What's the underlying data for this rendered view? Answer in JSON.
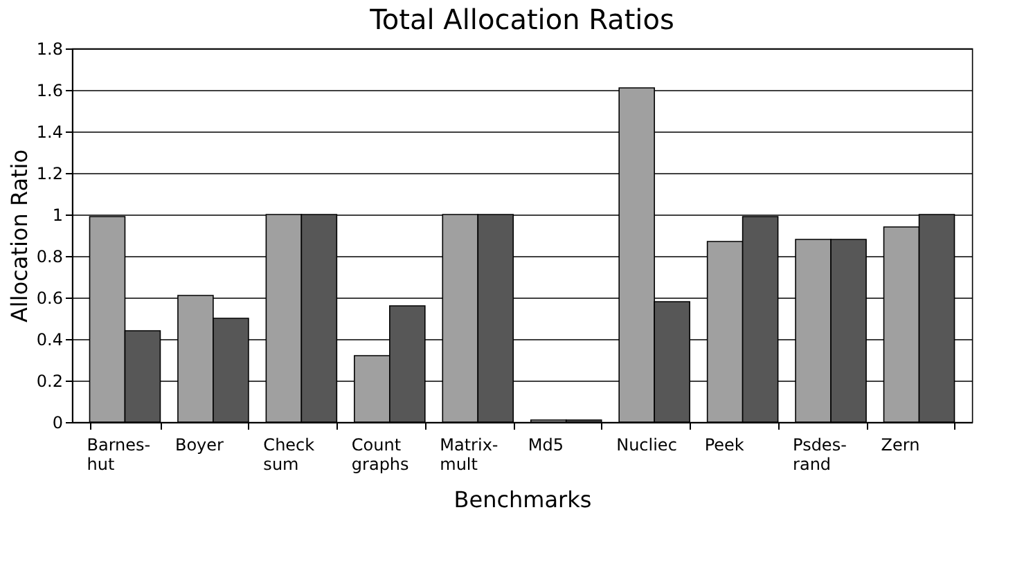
{
  "chart_data": {
    "type": "bar",
    "title": "Total Allocation Ratios",
    "xlabel": "Benchmarks",
    "ylabel": "Allocation Ratio",
    "categories": [
      "Barnes-\nhut",
      "Boyer",
      "Check\nsum",
      "Count\ngraphs",
      "Matrix-\nmult",
      "Md5",
      "Nucliec",
      "Peek",
      "Psdes-\nrand",
      "Zern"
    ],
    "series": [
      {
        "color": "#a0a0a0",
        "values": [
          0.99,
          0.61,
          1.0,
          0.32,
          1.0,
          0.01,
          1.61,
          0.87,
          0.88,
          0.94
        ]
      },
      {
        "color": "#575757",
        "values": [
          0.44,
          0.5,
          1.0,
          0.56,
          1.0,
          0.01,
          0.58,
          0.99,
          0.88,
          1.0
        ]
      }
    ],
    "ylim": [
      0,
      1.8
    ],
    "yticks": [
      0,
      0.2,
      0.4,
      0.6,
      0.8,
      1,
      1.2,
      1.4,
      1.6,
      1.8
    ],
    "grid": "y",
    "legend": false
  }
}
